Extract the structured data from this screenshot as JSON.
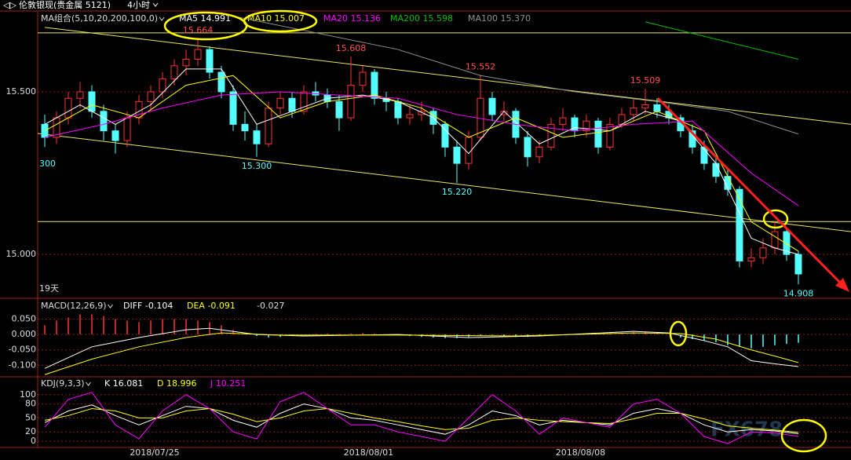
{
  "header": {
    "symbol": "伦敦银现(贵金属 5121)",
    "period": "4小时"
  },
  "watermark": "FX678",
  "chart_data": [
    {
      "type": "candlestick",
      "title": "MA组合(5,10,20,200,100,0)",
      "note": "19天",
      "edge_label": "300",
      "xlim": [
        -0.6,
        68.47
      ],
      "ylim": [
        14.87,
        15.746
      ],
      "yticks": [
        {
          "value": 15.5,
          "label": "15.500"
        },
        {
          "value": 15,
          "label": "15.000"
        }
      ],
      "grid": true,
      "up_color": "#ff3232",
      "down_color": "#54ffff",
      "candles": [
        [
          15.4,
          15.43,
          15.33,
          15.36
        ],
        [
          15.36,
          15.44,
          15.34,
          15.42
        ],
        [
          15.42,
          15.5,
          15.4,
          15.48
        ],
        [
          15.48,
          15.53,
          15.45,
          15.5
        ],
        [
          15.5,
          15.52,
          15.42,
          15.44
        ],
        [
          15.44,
          15.46,
          15.35,
          15.38
        ],
        [
          15.38,
          15.4,
          15.31,
          15.35
        ],
        [
          15.35,
          15.44,
          15.33,
          15.42
        ],
        [
          15.42,
          15.49,
          15.4,
          15.47
        ],
        [
          15.47,
          15.52,
          15.44,
          15.5
        ],
        [
          15.5,
          15.56,
          15.48,
          15.54
        ],
        [
          15.54,
          15.6,
          15.52,
          15.58
        ],
        [
          15.58,
          15.63,
          15.55,
          15.6
        ],
        [
          15.6,
          15.664,
          15.58,
          15.63
        ],
        [
          15.63,
          15.64,
          15.54,
          15.56
        ],
        [
          15.56,
          15.58,
          15.48,
          15.5
        ],
        [
          15.5,
          15.52,
          15.38,
          15.4
        ],
        [
          15.4,
          15.44,
          15.35,
          15.38
        ],
        [
          15.38,
          15.4,
          15.3,
          15.34
        ],
        [
          15.34,
          15.47,
          15.33,
          15.45
        ],
        [
          15.45,
          15.5,
          15.43,
          15.48
        ],
        [
          15.48,
          15.5,
          15.42,
          15.44
        ],
        [
          15.44,
          15.52,
          15.43,
          15.5
        ],
        [
          15.5,
          15.53,
          15.47,
          15.49
        ],
        [
          15.49,
          15.51,
          15.45,
          15.47
        ],
        [
          15.47,
          15.49,
          15.38,
          15.42
        ],
        [
          15.42,
          15.608,
          15.41,
          15.52
        ],
        [
          15.52,
          15.58,
          15.5,
          15.56
        ],
        [
          15.56,
          15.57,
          15.46,
          15.48
        ],
        [
          15.48,
          15.5,
          15.44,
          15.47
        ],
        [
          15.47,
          15.48,
          15.4,
          15.42
        ],
        [
          15.42,
          15.46,
          15.4,
          15.43
        ],
        [
          15.43,
          15.47,
          15.41,
          15.44
        ],
        [
          15.44,
          15.45,
          15.37,
          15.4
        ],
        [
          15.4,
          15.41,
          15.3,
          15.33
        ],
        [
          15.33,
          15.35,
          15.22,
          15.28
        ],
        [
          15.28,
          15.38,
          15.26,
          15.36
        ],
        [
          15.36,
          15.552,
          15.35,
          15.48
        ],
        [
          15.48,
          15.5,
          15.41,
          15.43
        ],
        [
          15.43,
          15.47,
          15.41,
          15.44
        ],
        [
          15.44,
          15.45,
          15.34,
          15.36
        ],
        [
          15.36,
          15.38,
          15.27,
          15.3
        ],
        [
          15.3,
          15.35,
          15.28,
          15.33
        ],
        [
          15.33,
          15.42,
          15.32,
          15.4
        ],
        [
          15.4,
          15.45,
          15.38,
          15.42
        ],
        [
          15.42,
          15.43,
          15.36,
          15.38
        ],
        [
          15.38,
          15.43,
          15.36,
          15.41
        ],
        [
          15.41,
          15.42,
          15.31,
          15.33
        ],
        [
          15.33,
          15.42,
          15.32,
          15.4
        ],
        [
          15.4,
          15.45,
          15.39,
          15.43
        ],
        [
          15.43,
          15.48,
          15.41,
          15.45
        ],
        [
          15.45,
          15.509,
          15.43,
          15.46
        ],
        [
          15.46,
          15.48,
          15.42,
          15.44
        ],
        [
          15.44,
          15.46,
          15.4,
          15.42
        ],
        [
          15.42,
          15.43,
          15.36,
          15.38
        ],
        [
          15.38,
          15.4,
          15.31,
          15.33
        ],
        [
          15.33,
          15.35,
          15.26,
          15.28
        ],
        [
          15.28,
          15.3,
          15.22,
          15.24
        ],
        [
          15.24,
          15.26,
          15.18,
          15.2
        ],
        [
          15.2,
          15.21,
          14.96,
          14.98
        ],
        [
          14.98,
          15.02,
          14.96,
          14.99
        ],
        [
          14.99,
          15.05,
          14.97,
          15.02
        ],
        [
          15.02,
          15.1,
          15.0,
          15.07
        ],
        [
          15.07,
          15.08,
          14.98,
          15.0
        ],
        [
          15.0,
          15.01,
          14.908,
          14.94
        ]
      ],
      "series": [
        {
          "name": "MA5 14.991",
          "color": "#ffffff",
          "x": [
            0,
            3,
            6,
            9,
            12,
            15,
            18,
            21,
            24,
            27,
            30,
            33,
            36,
            39,
            42,
            45,
            48,
            51,
            54,
            57,
            60,
            62,
            64
          ],
          "values": [
            15.4,
            15.46,
            15.4,
            15.46,
            15.57,
            15.57,
            15.4,
            15.44,
            15.48,
            15.49,
            15.47,
            15.42,
            15.31,
            15.44,
            15.34,
            15.39,
            15.38,
            15.44,
            15.41,
            15.28,
            15.05,
            15.02,
            15.0
          ]
        },
        {
          "name": "MA10 15.007",
          "color": "#ffff00",
          "x": [
            0,
            4,
            8,
            12,
            16,
            20,
            24,
            28,
            32,
            36,
            40,
            44,
            48,
            52,
            56,
            60,
            64
          ],
          "values": [
            15.38,
            15.46,
            15.42,
            15.52,
            15.55,
            15.42,
            15.47,
            15.49,
            15.45,
            15.36,
            15.42,
            15.36,
            15.38,
            15.44,
            15.38,
            15.1,
            15.01
          ]
        },
        {
          "name": "MA20 15.136",
          "color": "#ff00ff",
          "x": [
            0,
            5,
            10,
            15,
            20,
            25,
            30,
            35,
            40,
            45,
            50,
            55,
            60,
            64
          ],
          "values": [
            15.36,
            15.4,
            15.45,
            15.49,
            15.5,
            15.49,
            15.48,
            15.43,
            15.4,
            15.38,
            15.4,
            15.41,
            15.25,
            15.15
          ]
        },
        {
          "name": "MA200 15.598",
          "color": "#00c000",
          "x": [
            51,
            64
          ],
          "values": [
            15.715,
            15.6
          ]
        },
        {
          "name": "MA100 15.370",
          "color": "#909090",
          "x": [
            15,
            30,
            37,
            45,
            52,
            58,
            64
          ],
          "values": [
            15.74,
            15.63,
            15.55,
            15.5,
            15.47,
            15.44,
            15.37
          ]
        }
      ],
      "trendlines": [
        {
          "color": "#e8e860",
          "x": [
            0,
            68.47
          ],
          "values": [
            15.698,
            15.4
          ]
        },
        {
          "color": "#e8e860",
          "x": [
            -0.6,
            68.47
          ],
          "values": [
            15.372,
            15.07
          ]
        }
      ],
      "levels": [
        15.681,
        15.101
      ],
      "annotations": [
        {
          "label": "15.664",
          "value": 15.664,
          "index": 13
        },
        {
          "label": "15.608",
          "value": 15.608,
          "index": 26
        },
        {
          "label": "15.552",
          "value": 15.552,
          "index": 37
        },
        {
          "label": "15.509",
          "value": 15.509,
          "index": 51
        },
        {
          "label": "15.300",
          "value": 15.3,
          "index": 18
        },
        {
          "label": "15.220",
          "value": 15.22,
          "index": 35
        },
        {
          "label": "14.908",
          "value": 14.908,
          "index": 64
        }
      ]
    },
    {
      "type": "macd",
      "title": "MACD(12,26,9)",
      "xlim": [
        -0.6,
        68.47
      ],
      "ylim": [
        -0.132,
        0.112
      ],
      "yticks": [
        {
          "value": 0.05,
          "label": "0.050"
        },
        {
          "value": 0,
          "label": "0.000"
        },
        {
          "value": -0.05,
          "label": "-0.050"
        },
        {
          "value": -0.1,
          "label": "-0.100"
        }
      ],
      "grid": true,
      "histogram": {
        "name": "-0.027",
        "up_color": "#ff3232",
        "down_color": "#54ffff",
        "values": [
          0.03,
          0.045,
          0.055,
          0.065,
          0.065,
          0.06,
          0.05,
          0.045,
          0.04,
          0.045,
          0.05,
          0.05,
          0.05,
          0.045,
          0.04,
          0.03,
          0.015,
          0.005,
          -0.005,
          -0.01,
          -0.008,
          -0.005,
          0.0,
          0.002,
          0.003,
          0.002,
          0.003,
          0.005,
          0.003,
          0.0,
          -0.003,
          -0.005,
          -0.008,
          -0.01,
          -0.012,
          -0.012,
          -0.008,
          -0.003,
          -0.002,
          -0.005,
          -0.008,
          -0.008,
          -0.006,
          -0.004,
          -0.002,
          0.0,
          0.002,
          0.002,
          0.004,
          0.006,
          0.007,
          0.008,
          0.005,
          0.0,
          -0.01,
          -0.015,
          -0.02,
          -0.025,
          -0.035,
          -0.04,
          -0.045,
          -0.04,
          -0.035,
          -0.03,
          -0.027
        ]
      },
      "series": [
        {
          "name": "DIFF -0.104",
          "color": "#ffffff",
          "x": [
            0,
            4,
            8,
            12,
            14,
            18,
            22,
            30,
            36,
            42,
            50,
            53,
            56,
            58,
            60,
            62,
            64
          ],
          "values": [
            -0.11,
            -0.04,
            -0.01,
            0.015,
            0.02,
            0.0,
            -0.005,
            0.0,
            -0.01,
            -0.005,
            0.01,
            0.005,
            -0.02,
            -0.04,
            -0.085,
            -0.095,
            -0.104
          ]
        },
        {
          "name": "DEA -0.091",
          "color": "#ffff00",
          "x": [
            0,
            4,
            8,
            12,
            15,
            20,
            30,
            40,
            50,
            54,
            57,
            60,
            62,
            64
          ],
          "values": [
            -0.13,
            -0.08,
            -0.04,
            -0.01,
            0.005,
            -0.002,
            -0.002,
            -0.005,
            0.005,
            0.003,
            -0.015,
            -0.05,
            -0.07,
            -0.091
          ]
        }
      ]
    },
    {
      "type": "kdj",
      "title": "KDJ(9,3,3)",
      "xlim": [
        -0.6,
        68.47
      ],
      "ylim": [
        -10,
        135
      ],
      "yticks": [
        0,
        20,
        50,
        80,
        100
      ],
      "grid": true,
      "xticks": [
        {
          "value": 9.33,
          "label": "2018/07/25"
        },
        {
          "value": 27.5,
          "label": "2018/08/01"
        },
        {
          "value": 45.5,
          "label": "2018/08/08"
        }
      ],
      "series": [
        {
          "name": "K 16.081",
          "color": "#ffffff",
          "x": [
            0,
            2,
            4,
            6,
            8,
            10,
            12,
            14,
            16,
            18,
            20,
            22,
            24,
            26,
            28,
            30,
            32,
            34,
            36,
            38,
            40,
            42,
            44,
            46,
            48,
            50,
            52,
            54,
            56,
            58,
            60,
            62,
            64
          ],
          "values": [
            40,
            65,
            78,
            55,
            35,
            55,
            75,
            70,
            45,
            30,
            60,
            80,
            70,
            50,
            45,
            35,
            25,
            15,
            35,
            65,
            55,
            35,
            45,
            40,
            35,
            60,
            70,
            60,
            35,
            20,
            25,
            22,
            16.081
          ]
        },
        {
          "name": "D 18.996",
          "color": "#ffff00",
          "x": [
            0,
            2,
            4,
            6,
            8,
            10,
            12,
            14,
            16,
            18,
            20,
            22,
            24,
            26,
            28,
            30,
            32,
            34,
            36,
            38,
            40,
            42,
            44,
            46,
            48,
            50,
            52,
            54,
            56,
            58,
            60,
            62,
            64
          ],
          "values": [
            45,
            55,
            70,
            65,
            50,
            50,
            65,
            70,
            58,
            42,
            50,
            65,
            70,
            60,
            50,
            42,
            33,
            25,
            28,
            45,
            50,
            45,
            42,
            40,
            38,
            48,
            60,
            60,
            48,
            33,
            28,
            24,
            18.996
          ]
        },
        {
          "name": "J 10.251",
          "color": "#ff00ff",
          "x": [
            0,
            2,
            4,
            6,
            8,
            10,
            12,
            14,
            16,
            18,
            20,
            22,
            24,
            26,
            28,
            30,
            32,
            34,
            36,
            38,
            40,
            42,
            44,
            46,
            48,
            50,
            52,
            54,
            56,
            58,
            60,
            62,
            64
          ],
          "values": [
            30,
            90,
            105,
            35,
            5,
            65,
            100,
            70,
            20,
            5,
            85,
            105,
            70,
            35,
            35,
            20,
            10,
            0,
            50,
            100,
            65,
            15,
            50,
            40,
            30,
            80,
            90,
            60,
            10,
            -5,
            20,
            18,
            10.251
          ]
        }
      ]
    }
  ]
}
